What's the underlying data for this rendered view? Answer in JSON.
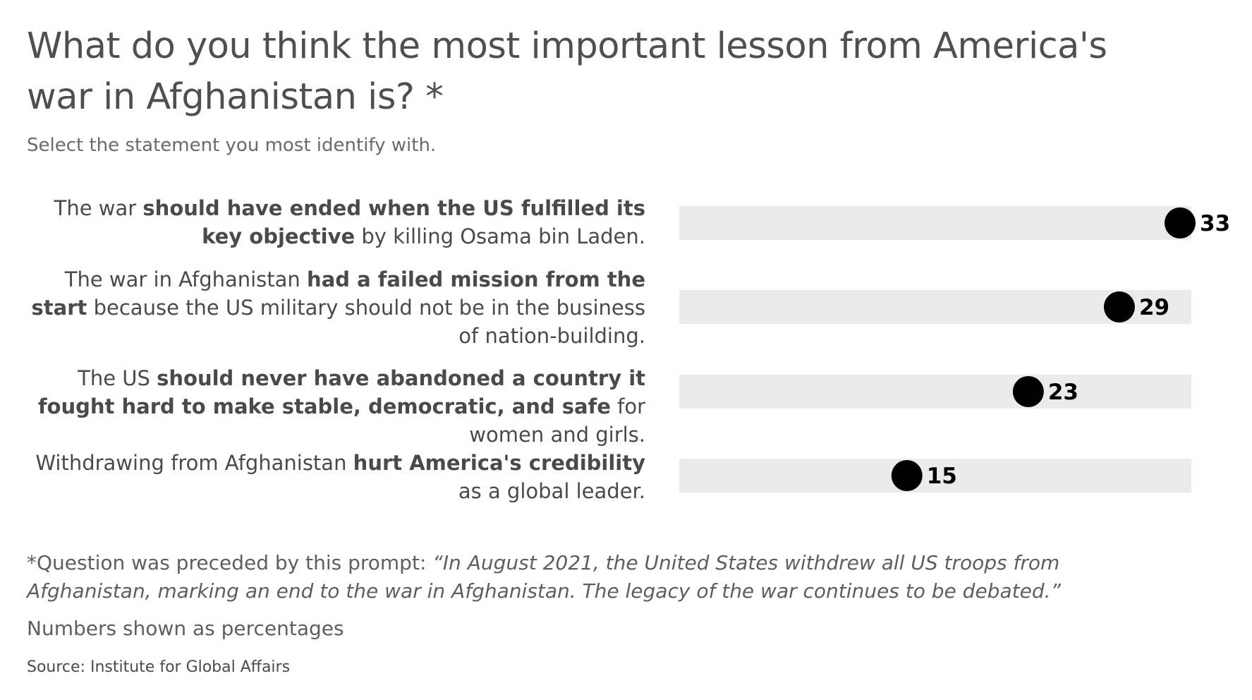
{
  "title": "What do you think the most important lesson from America's war in Afghanistan is? *",
  "subtitle": "Select the statement you most identify with.",
  "chart_data": {
    "type": "bar",
    "style": "dot-on-track",
    "categories": [
      "The war should have ended when the US fulfilled its key objective by killing Osama bin Laden.",
      "The war in Afghanistan had a failed mission from the start because the US military should not be in the business of nation-building.",
      "The US should never have abandoned a country it fought hard to make stable, democratic, and safe for women and girls.",
      "Withdrawing from Afghanistan hurt America's credibility as a global leader."
    ],
    "values": [
      33,
      29,
      23,
      15
    ],
    "data_labels": [
      "33",
      "29",
      "23",
      "15"
    ],
    "xlim": [
      0,
      33
    ],
    "grid": false,
    "legend": "none",
    "colors": {
      "track": "#ebebeb",
      "dot": "#000000",
      "value_label": "#000000"
    }
  },
  "labels": [
    {
      "parts": [
        {
          "text": "The war ",
          "bold": false
        },
        {
          "text": "should have ended when the US fulfilled its key objective",
          "bold": true
        },
        {
          "text": " by killing Osama bin Laden.",
          "bold": false
        }
      ]
    },
    {
      "parts": [
        {
          "text": "The war in Afghanistan ",
          "bold": false
        },
        {
          "text": "had a failed mission from the start",
          "bold": true
        },
        {
          "text": " because the US military should not be in the business of nation-building.",
          "bold": false
        }
      ]
    },
    {
      "parts": [
        {
          "text": "The US ",
          "bold": false
        },
        {
          "text": "should never have abandoned a country it fought hard to make stable, democratic, and safe",
          "bold": true
        },
        {
          "text": " for women and girls.",
          "bold": false
        }
      ]
    },
    {
      "parts": [
        {
          "text": "Withdrawing from Afghanistan ",
          "bold": false
        },
        {
          "text": "hurt America's credibility",
          "bold": true
        },
        {
          "text": " as a global leader.",
          "bold": false
        }
      ]
    }
  ],
  "footnote": {
    "prefix": "*Question was preceded by this prompt: ",
    "quote": "“In August 2021, the United States withdrew all US troops from Afghanistan, marking an end to the war in Afghanistan. The legacy of the war continues to be debated.”"
  },
  "unit_note": "Numbers shown as percentages",
  "source": "Source: Institute for Global Affairs"
}
